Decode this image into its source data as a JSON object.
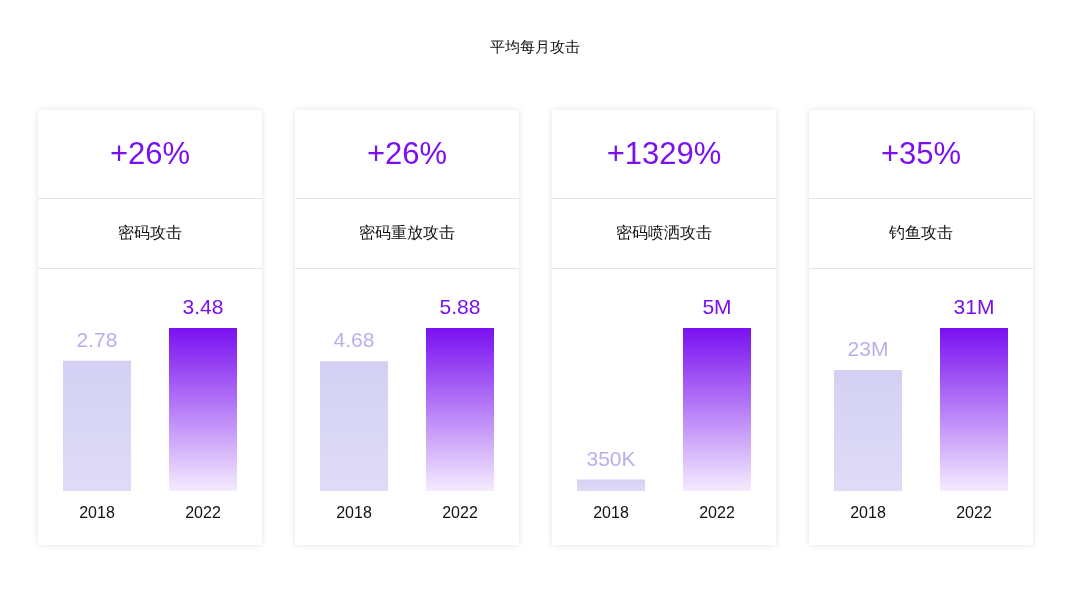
{
  "chart_data": [
    {
      "type": "other",
      "title": "平均每月攻击"
    },
    {
      "type": "bar",
      "title": "+26%",
      "subtitle": "密码攻击",
      "categories": [
        "2018",
        "2022"
      ],
      "values": [
        2.78,
        3.48
      ],
      "colors": [
        "#d4d0f4",
        "#7a10f0"
      ],
      "data_labels": true
    },
    {
      "type": "bar",
      "title": "+26%",
      "subtitle": "密码重放攻击",
      "categories": [
        "2018",
        "2022"
      ],
      "values": [
        4.68,
        5.88
      ],
      "colors": [
        "#d4d0f4",
        "#7a10f0"
      ],
      "data_labels": true
    },
    {
      "type": "bar",
      "title": "+1329%",
      "subtitle": "密码喷洒攻击",
      "categories": [
        "2018",
        "2022"
      ],
      "values": [
        350000,
        5000000
      ],
      "value_labels": [
        "350K",
        "5M"
      ],
      "colors": [
        "#d4d0f4",
        "#7a10f0"
      ]
    },
    {
      "type": "bar",
      "title": "+35%",
      "subtitle": "钓鱼攻击",
      "categories": [
        "2018",
        "2022"
      ],
      "values": [
        23000000,
        31000000
      ],
      "value_labels": [
        "23M",
        "31M"
      ],
      "colors": [
        "#d4d0f4",
        "#7a10f0"
      ]
    }
  ]
}
